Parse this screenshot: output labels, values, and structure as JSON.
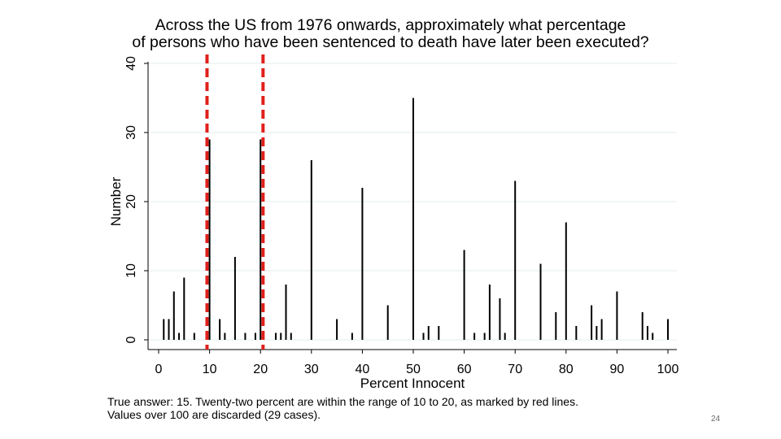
{
  "chart_data": {
    "type": "bar",
    "title_line1": "Across the US from 1976 onwards, approximately what percentage",
    "title_line2": "of persons who have been sentenced to death have later been executed?",
    "xlabel": "Percent Innocent",
    "ylabel": "Number",
    "xlim": [
      0,
      100
    ],
    "ylim": [
      0,
      40
    ],
    "xticks": [
      "0",
      "10",
      "20",
      "30",
      "40",
      "50",
      "60",
      "70",
      "80",
      "90",
      "100"
    ],
    "yticks": [
      "0",
      "10",
      "20",
      "30",
      "40"
    ],
    "grid": "horizontal",
    "reference_lines": [
      9.5,
      20.5
    ],
    "x": [
      1,
      2,
      3,
      4,
      5,
      7,
      10,
      12,
      13,
      15,
      17,
      19,
      20,
      23,
      24,
      25,
      26,
      30,
      35,
      38,
      40,
      45,
      50,
      52,
      53,
      55,
      60,
      62,
      64,
      65,
      67,
      68,
      70,
      75,
      78,
      80,
      82,
      85,
      86,
      87,
      90,
      95,
      96,
      97,
      100
    ],
    "values": [
      3,
      3,
      7,
      1,
      9,
      1,
      29,
      3,
      1,
      12,
      1,
      1,
      29,
      1,
      1,
      8,
      1,
      26,
      3,
      1,
      22,
      5,
      35,
      1,
      2,
      2,
      13,
      1,
      1,
      8,
      6,
      1,
      23,
      11,
      4,
      17,
      2,
      5,
      2,
      3,
      7,
      4,
      2,
      1,
      3
    ]
  },
  "notes": {
    "line1": "True answer: 15. Twenty-two percent are within the range of 10 to 20, as marked by red lines.",
    "line2": "Values over 100 are discarded (29 cases)."
  },
  "page_number": "24",
  "colors": {
    "bars": "#000000",
    "reference_line": "#e0201a",
    "grid": "#e3ecec"
  }
}
